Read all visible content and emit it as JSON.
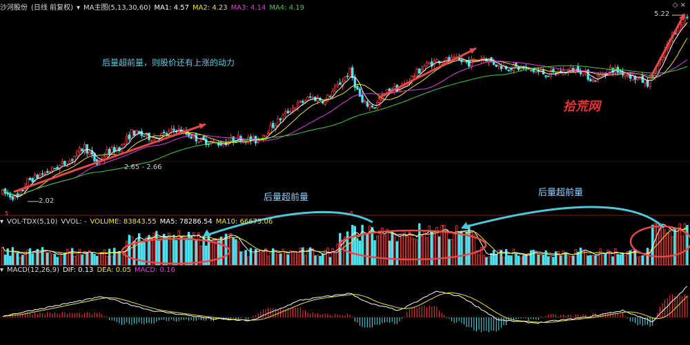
{
  "header": {
    "stock_name": "沙河股份",
    "period": "(日线 前复权)",
    "indicator": "MA主图(5,13,30,60)",
    "ma1": "MA1: 4.57",
    "ma2": "MA2: 4.23",
    "ma3": "MA3: 4.14",
    "ma4": "MA4: 4.19"
  },
  "volume_header": {
    "indicator": "VOL-TDX(5,10)",
    "vvol": "VVOL: -",
    "volume": "VOLUME: 83843.55",
    "ma5": "MA5: 78286.54",
    "ma10": "MA10: 66673.06"
  },
  "macd_header": {
    "indicator": "MACD(12,26,9)",
    "dif": "DIF: 0.13",
    "dea": "DEA: 0.05",
    "macd": "MACD: 0.16"
  },
  "annotations": {
    "price_note": "后量超前量，则股价还有上涨的动力",
    "vol_note_1": "后量超前量",
    "vol_note_2": "后量超前量",
    "watermark": "拾荒网",
    "label_max": "5.22",
    "label_min": "2.02",
    "label_mid": "2.65 - 2.66",
    "marker_1": "5",
    "marker_2": "5"
  },
  "colors": {
    "up": "#ff3b3b",
    "down": "#4fe3f0",
    "ma1": "#ffffff",
    "ma2": "#f2e23a",
    "ma3": "#e040e0",
    "ma4": "#3cd23c",
    "arrow": "#e84a4a",
    "cyan_arrow": "#4cc9dc"
  },
  "chart_data": {
    "type": "candlestick",
    "title": "沙河股份 (日线 前复权)",
    "price_range": [
      1.9,
      5.3
    ],
    "price_low": 2.02,
    "price_high": 5.22,
    "price_path": [
      [
        0,
        2.15
      ],
      [
        6,
        2.05
      ],
      [
        10,
        2.35
      ],
      [
        20,
        2.55
      ],
      [
        27,
        2.7
      ],
      [
        33,
        2.95
      ],
      [
        38,
        2.65
      ],
      [
        42,
        2.85
      ],
      [
        48,
        2.95
      ],
      [
        52,
        3.2
      ],
      [
        60,
        3.1
      ],
      [
        65,
        3.15
      ],
      [
        70,
        3.25
      ],
      [
        80,
        3.05
      ],
      [
        88,
        3.0
      ],
      [
        95,
        3.1
      ],
      [
        102,
        3.05
      ],
      [
        110,
        3.35
      ],
      [
        116,
        3.6
      ],
      [
        124,
        3.8
      ],
      [
        130,
        3.75
      ],
      [
        140,
        4.25
      ],
      [
        145,
        3.7
      ],
      [
        150,
        3.65
      ],
      [
        156,
        3.95
      ],
      [
        160,
        3.95
      ],
      [
        170,
        4.35
      ],
      [
        176,
        4.45
      ],
      [
        182,
        4.45
      ],
      [
        188,
        4.4
      ],
      [
        194,
        4.5
      ],
      [
        200,
        4.35
      ],
      [
        210,
        4.3
      ],
      [
        220,
        4.2
      ],
      [
        232,
        4.3
      ],
      [
        238,
        4.1
      ],
      [
        245,
        4.3
      ],
      [
        252,
        4.2
      ],
      [
        260,
        4.05
      ],
      [
        265,
        4.4
      ],
      [
        270,
        4.9
      ],
      [
        276,
        5.22
      ]
    ],
    "volume_range": [
      0,
      200000
    ],
    "volume_series": [
      {
        "name": "VOLUME",
        "last": 83843.55
      },
      {
        "name": "MA5",
        "last": 78286.54
      },
      {
        "name": "MA10",
        "last": 66673.06
      }
    ],
    "macd_series": [
      {
        "name": "DIF",
        "last": 0.13
      },
      {
        "name": "DEA",
        "last": 0.05
      },
      {
        "name": "MACD",
        "last": 0.16
      }
    ],
    "ma_series": [
      {
        "name": "MA1",
        "last": 4.57
      },
      {
        "name": "MA2",
        "last": 4.23
      },
      {
        "name": "MA3",
        "last": 4.14
      },
      {
        "name": "MA4",
        "last": 4.19
      }
    ]
  }
}
